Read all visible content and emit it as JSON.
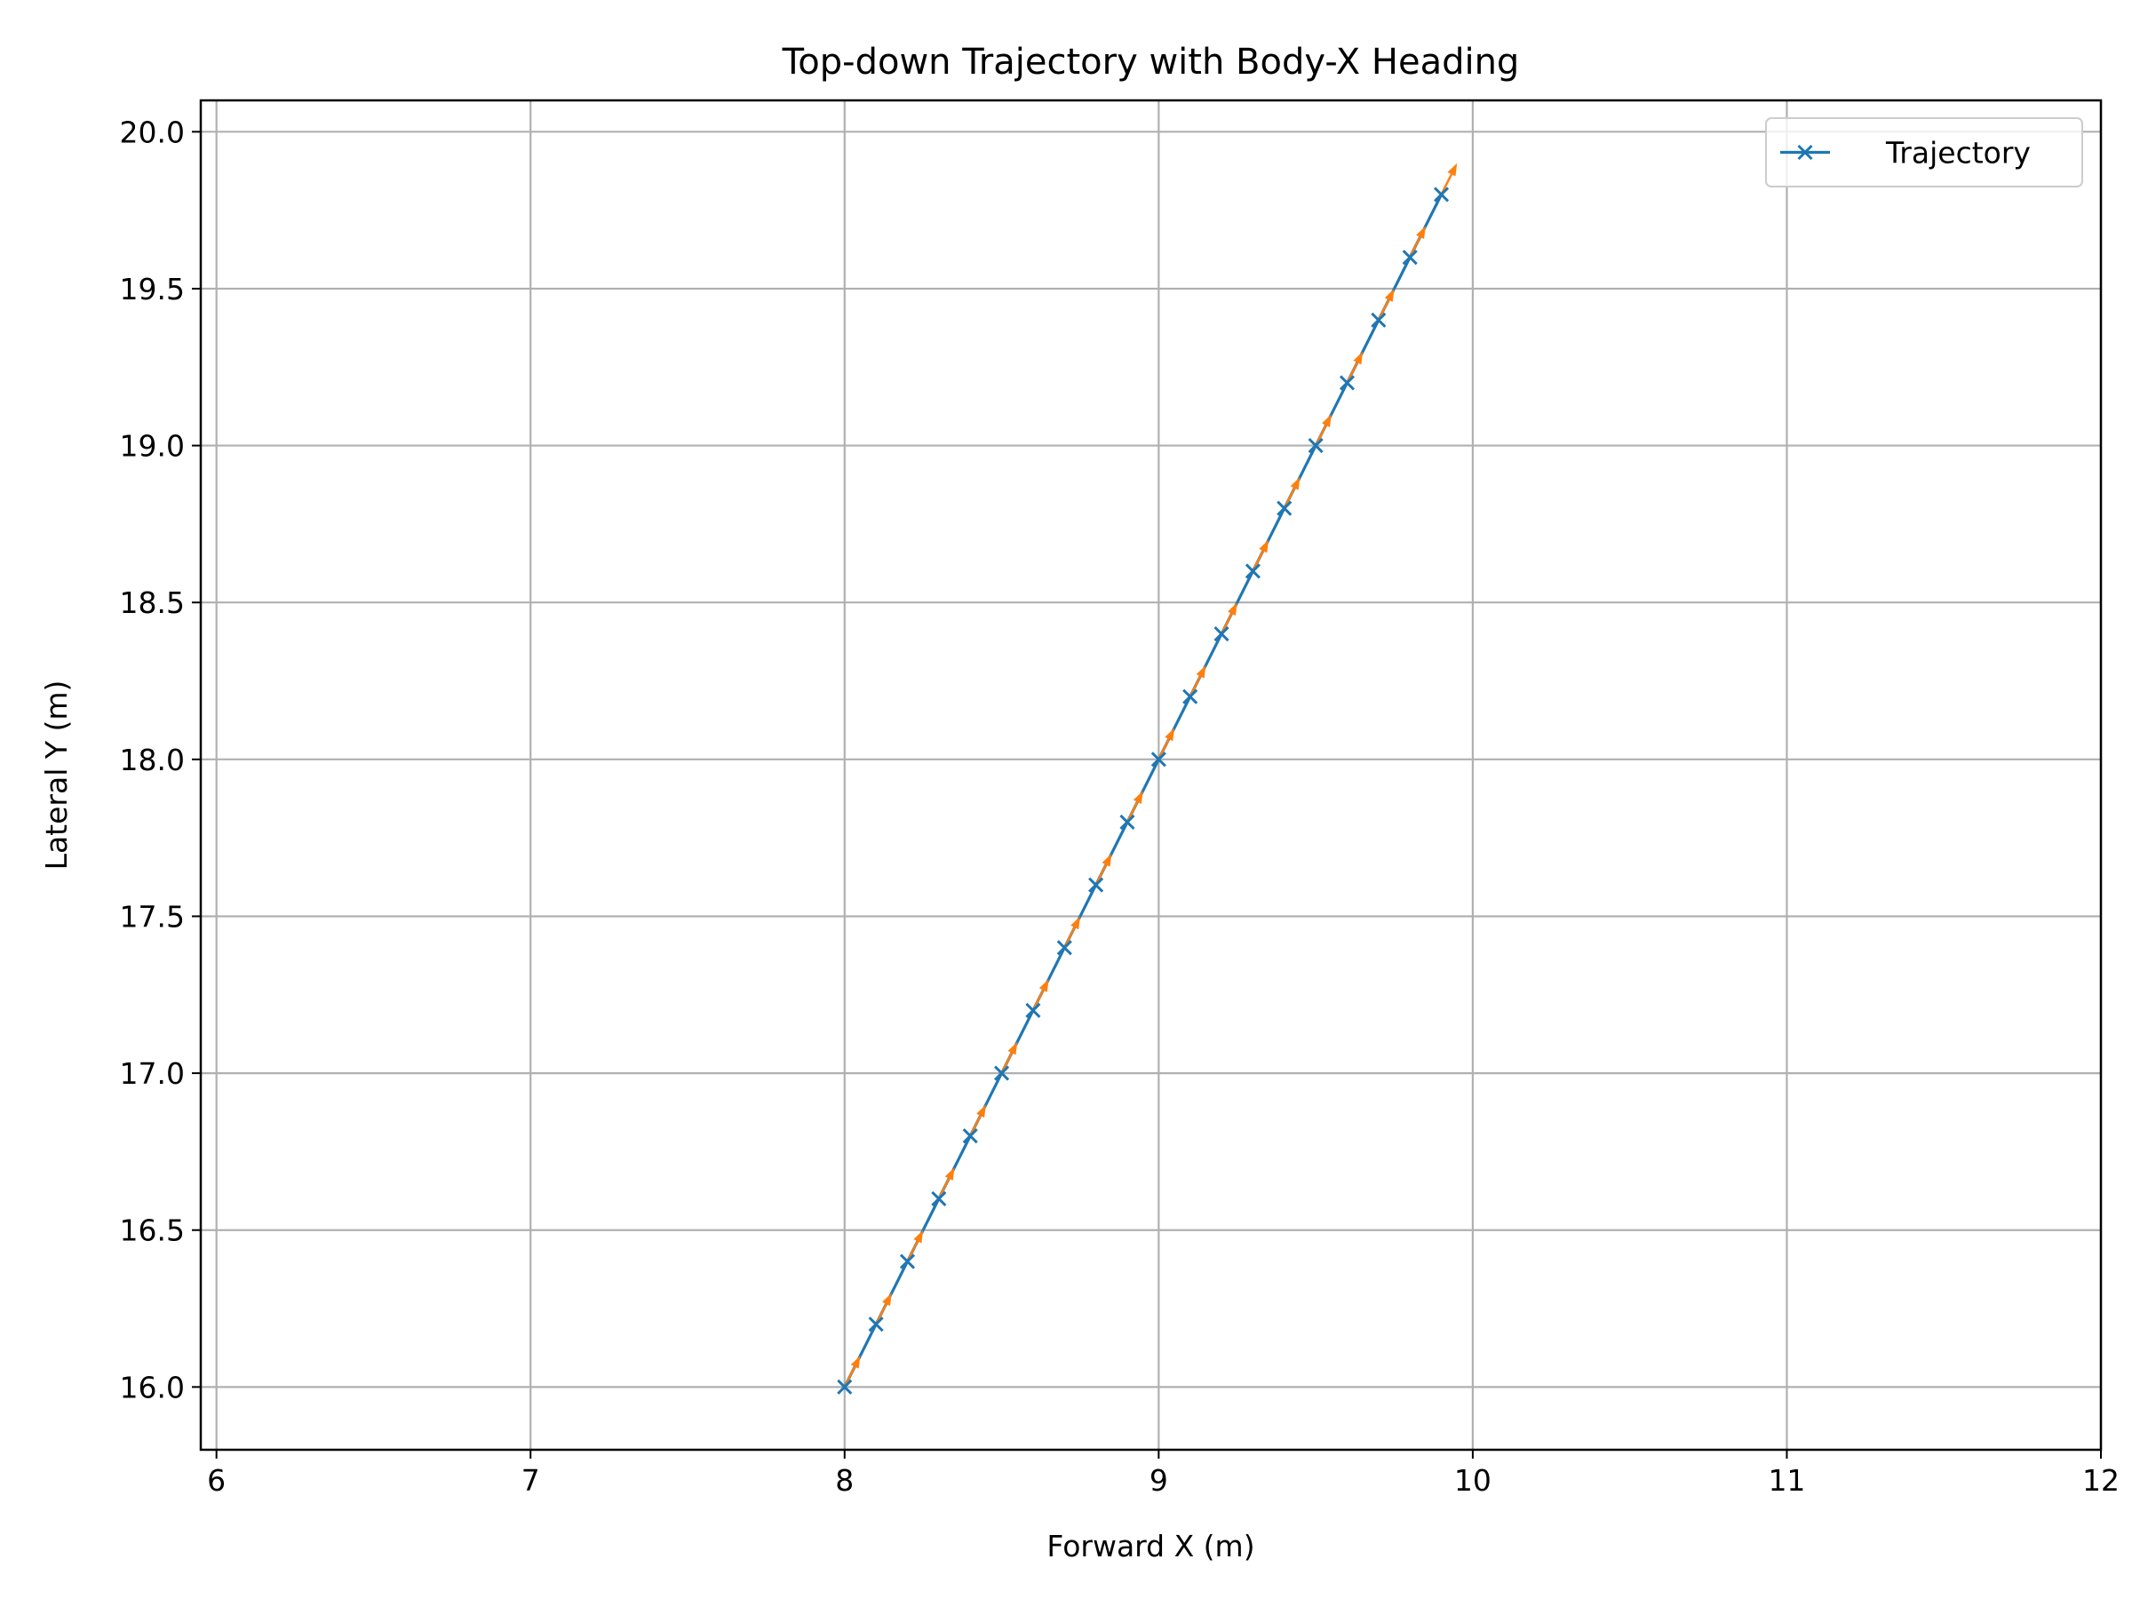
{
  "chart_data": {
    "type": "line",
    "title": "Top-down Trajectory with Body-X Heading",
    "xlabel": "Forward X (m)",
    "ylabel": "Lateral Y (m)",
    "xlim": [
      5.95,
      12.0
    ],
    "ylim": [
      15.8,
      20.1
    ],
    "xticks": [
      "6",
      "7",
      "8",
      "9",
      "10",
      "11",
      "12"
    ],
    "yticks": [
      "16.0",
      "16.5",
      "17.0",
      "17.5",
      "18.0",
      "18.5",
      "19.0",
      "19.5",
      "20.0"
    ],
    "grid": true,
    "legend_position": "top-right",
    "colors": {
      "trajectory": "#1f77b4",
      "heading": "#ff7f0e",
      "grid": "#b0b0b0"
    },
    "series": [
      {
        "name": "Trajectory",
        "marker": "x",
        "x": [
          8.0,
          8.1,
          8.2,
          8.3,
          8.4,
          8.5,
          8.6,
          8.7,
          8.8,
          8.9,
          9.0,
          9.1,
          9.2,
          9.3,
          9.4,
          9.5,
          9.6,
          9.7,
          9.8,
          9.9
        ],
        "y": [
          16.0,
          16.2,
          16.4,
          16.6,
          16.8,
          17.0,
          17.2,
          17.4,
          17.6,
          17.8,
          18.0,
          18.2,
          18.4,
          18.6,
          18.8,
          19.0,
          19.2,
          19.4,
          19.6,
          19.8
        ]
      }
    ],
    "heading_arrows": {
      "dx": 0.05,
      "dy": 0.1,
      "x": [
        8.0,
        8.1,
        8.2,
        8.3,
        8.4,
        8.5,
        8.6,
        8.7,
        8.8,
        8.9,
        9.0,
        9.1,
        9.2,
        9.3,
        9.4,
        9.5,
        9.6,
        9.7,
        9.8,
        9.9
      ],
      "y": [
        16.0,
        16.2,
        16.4,
        16.6,
        16.8,
        17.0,
        17.2,
        17.4,
        17.6,
        17.8,
        18.0,
        18.2,
        18.4,
        18.6,
        18.8,
        19.0,
        19.2,
        19.4,
        19.6,
        19.8
      ]
    }
  }
}
